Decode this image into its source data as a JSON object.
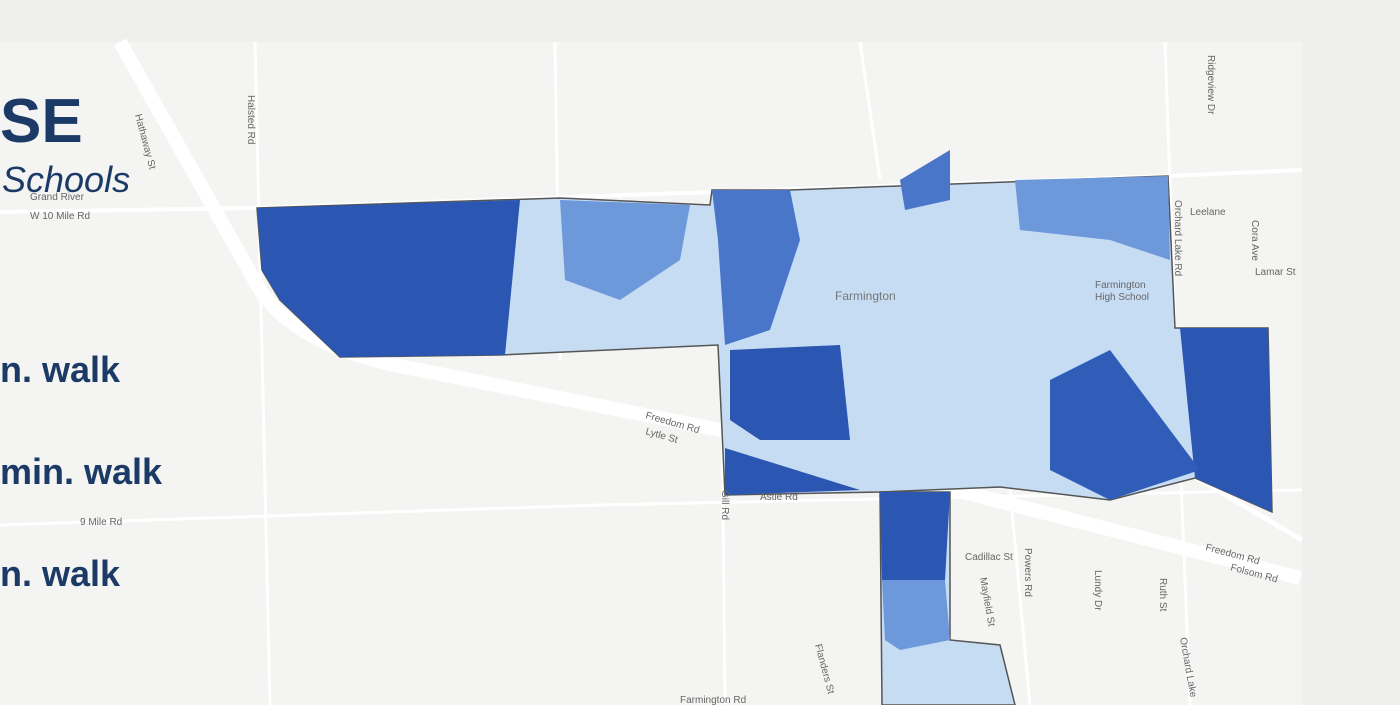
{
  "title": {
    "text": "SE",
    "subtitle": "Schools"
  },
  "legend": [
    "n. walk",
    "min. walk",
    "n. walk"
  ],
  "roads": [
    "Halsted Rd",
    "Hathaway St",
    "Grand River",
    "W 10 Mile Rd",
    "9 Mile Rd",
    "Freedom Rd",
    "Lytle St",
    "Freedom Rd",
    "Folsom Rd",
    "Leelane",
    "Cora Ave",
    "Lamar St",
    "Ridgeview Dr",
    "Orchard Lake Rd",
    "Cadillac St",
    "Powers Rd",
    "Mayfield St",
    "Lundy Dr",
    "Ruth St",
    "Flanders St",
    "Orchard Lake",
    "Farmington Rd",
    "Gill Rd",
    "Astle Rd"
  ],
  "places": [
    "Farmington",
    "Farmington",
    "High School"
  ]
}
